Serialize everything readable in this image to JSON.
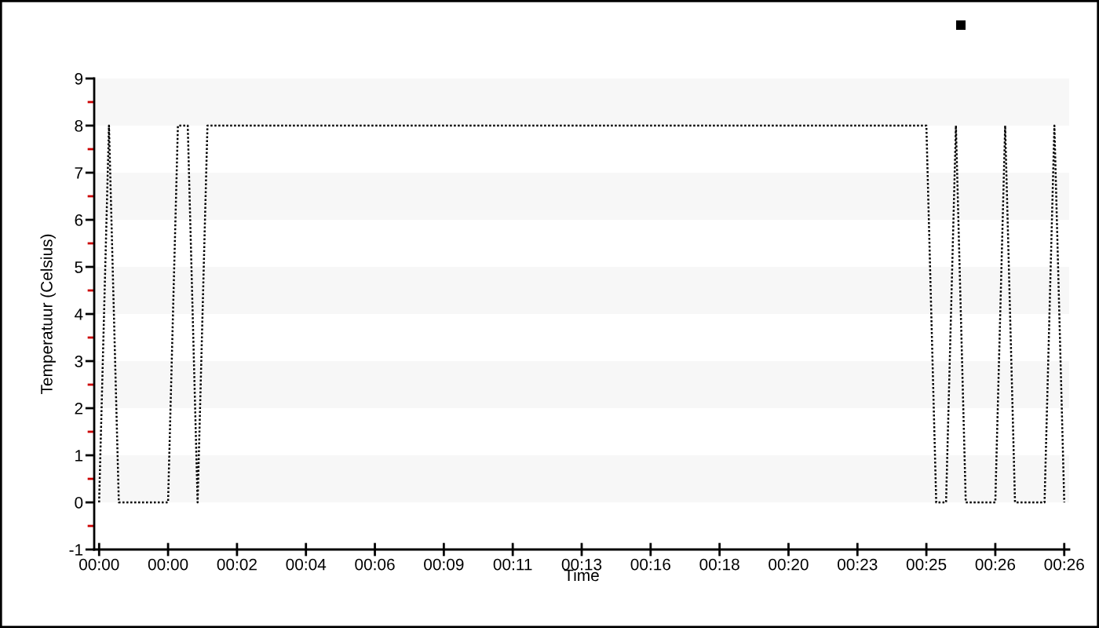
{
  "chart_data": {
    "type": "line",
    "xlabel": "Time",
    "ylabel": "Temperatuur (Celsius)",
    "categories": [
      "00:00",
      null,
      null,
      null,
      null,
      null,
      null,
      "00:00",
      null,
      null,
      null,
      null,
      null,
      null,
      "00:02",
      null,
      null,
      null,
      null,
      null,
      null,
      "00:04",
      null,
      null,
      null,
      null,
      null,
      null,
      "00:06",
      null,
      null,
      null,
      null,
      null,
      null,
      "00:09",
      null,
      null,
      null,
      null,
      null,
      null,
      "00:11",
      null,
      null,
      null,
      null,
      null,
      null,
      "00:13",
      null,
      null,
      null,
      null,
      null,
      null,
      "00:16",
      null,
      null,
      null,
      null,
      null,
      null,
      "00:18",
      null,
      null,
      null,
      null,
      null,
      null,
      "00:20",
      null,
      null,
      null,
      null,
      null,
      null,
      "00:23",
      null,
      null,
      null,
      null,
      null,
      null,
      "00:25",
      null,
      null,
      null,
      null,
      null,
      null,
      "00:26",
      null,
      null,
      null,
      null,
      null,
      null,
      "00:26"
    ],
    "series": [
      {
        "color": "#000000",
        "values": [
          0,
          8,
          0,
          0,
          0,
          0,
          0,
          0,
          8,
          8,
          0,
          8,
          8,
          8,
          8,
          8,
          8,
          8,
          8,
          8,
          8,
          8,
          8,
          8,
          8,
          8,
          8,
          8,
          8,
          8,
          8,
          8,
          8,
          8,
          8,
          8,
          8,
          8,
          8,
          8,
          8,
          8,
          8,
          8,
          8,
          8,
          8,
          8,
          8,
          8,
          8,
          8,
          8,
          8,
          8,
          8,
          8,
          8,
          8,
          8,
          8,
          8,
          8,
          8,
          8,
          8,
          8,
          8,
          8,
          8,
          8,
          8,
          8,
          8,
          8,
          8,
          8,
          8,
          8,
          8,
          8,
          8,
          8,
          8,
          8,
          0,
          0,
          8,
          0,
          0,
          0,
          0,
          8,
          0,
          0,
          0,
          0,
          8,
          0
        ]
      }
    ],
    "ylim": [
      -1,
      9
    ],
    "yticks": [
      -1,
      0,
      1,
      2,
      3,
      4,
      5,
      6,
      7,
      8,
      9
    ],
    "bands": [
      {
        "axis": "y",
        "from": 8,
        "to": 9,
        "color": "#f7f7f7"
      },
      {
        "axis": "y",
        "from": 6,
        "to": 7,
        "color": "#f7f7f7"
      },
      {
        "axis": "y",
        "from": 4,
        "to": 5,
        "color": "#f7f7f7"
      },
      {
        "axis": "y",
        "from": 2,
        "to": 3,
        "color": "#f7f7f7"
      },
      {
        "axis": "y",
        "from": 0,
        "to": 1,
        "color": "#f7f7f7"
      }
    ],
    "line_style": "dotted"
  }
}
